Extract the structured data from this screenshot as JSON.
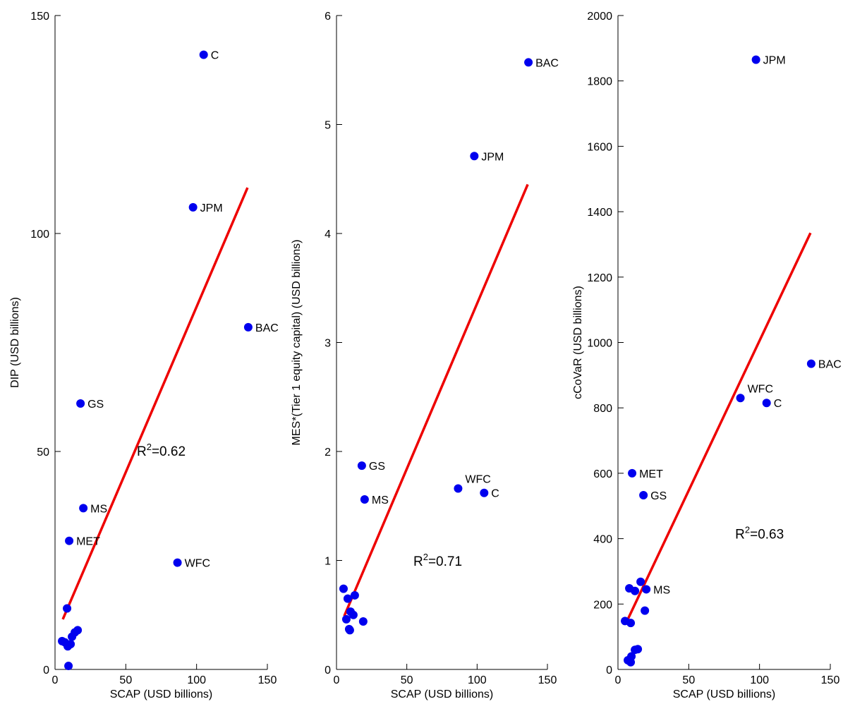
{
  "chart_data": [
    {
      "type": "scatter",
      "xlabel": "SCAP (USD billions)",
      "ylabel": "DIP (USD billions)",
      "xlim": [
        0,
        150
      ],
      "ylim": [
        0,
        150
      ],
      "xticks": [
        "0",
        "50",
        "100",
        "150"
      ],
      "yticks": [
        "0",
        "50",
        "100",
        "150"
      ],
      "grid": false,
      "annotation": {
        "base": "R",
        "sup": "2",
        "rest": "=0.62",
        "x": 75,
        "y": 49
      },
      "fit_line": {
        "x": [
          5.5,
          136
        ],
        "y": [
          11.5,
          110.5
        ]
      },
      "point_color": "#0000ee",
      "line_color": "#ee0000",
      "points": [
        {
          "x": 105,
          "y": 141,
          "label": "C"
        },
        {
          "x": 97.5,
          "y": 106,
          "label": "JPM"
        },
        {
          "x": 136.5,
          "y": 78.5,
          "label": "BAC"
        },
        {
          "x": 18,
          "y": 61,
          "label": "GS"
        },
        {
          "x": 20,
          "y": 37,
          "label": "MS"
        },
        {
          "x": 10,
          "y": 29.5,
          "label": "MET"
        },
        {
          "x": 86.5,
          "y": 24.5,
          "label": "WFC"
        },
        {
          "x": 8.5,
          "y": 14,
          "label": ""
        },
        {
          "x": 16,
          "y": 9,
          "label": ""
        },
        {
          "x": 14,
          "y": 8.5,
          "label": ""
        },
        {
          "x": 12,
          "y": 7.5,
          "label": ""
        },
        {
          "x": 5,
          "y": 6.5,
          "label": ""
        },
        {
          "x": 7,
          "y": 6.2,
          "label": ""
        },
        {
          "x": 11,
          "y": 5.8,
          "label": ""
        },
        {
          "x": 9,
          "y": 5.3,
          "label": ""
        },
        {
          "x": 9.5,
          "y": 0.8,
          "label": ""
        }
      ]
    },
    {
      "type": "scatter",
      "xlabel": "SCAP (USD billions)",
      "ylabel": "MES*(Tier 1 equity capital) (USD billions)",
      "xlim": [
        0,
        150
      ],
      "ylim": [
        0,
        6
      ],
      "xticks": [
        "0",
        "50",
        "100",
        "150"
      ],
      "yticks": [
        "0",
        "1",
        "2",
        "3",
        "4",
        "5",
        "6"
      ],
      "grid": false,
      "annotation": {
        "base": "R",
        "sup": "2",
        "rest": "=0.71",
        "x": 72,
        "y": 0.95
      },
      "fit_line": {
        "x": [
          5.5,
          136
        ],
        "y": [
          0.49,
          4.45
        ]
      },
      "point_color": "#0000ee",
      "line_color": "#ee0000",
      "points": [
        {
          "x": 136.5,
          "y": 5.57,
          "label": "BAC"
        },
        {
          "x": 98,
          "y": 4.71,
          "label": "JPM"
        },
        {
          "x": 18,
          "y": 1.87,
          "label": "GS"
        },
        {
          "x": 86.5,
          "y": 1.66,
          "label": "WFC"
        },
        {
          "x": 105,
          "y": 1.62,
          "label": "C"
        },
        {
          "x": 20,
          "y": 1.56,
          "label": "MS"
        },
        {
          "x": 5,
          "y": 0.74,
          "label": ""
        },
        {
          "x": 13,
          "y": 0.68,
          "label": ""
        },
        {
          "x": 8,
          "y": 0.65,
          "label": ""
        },
        {
          "x": 10,
          "y": 0.53,
          "label": ""
        },
        {
          "x": 12,
          "y": 0.5,
          "label": ""
        },
        {
          "x": 7,
          "y": 0.46,
          "label": ""
        },
        {
          "x": 19,
          "y": 0.44,
          "label": ""
        },
        {
          "x": 9,
          "y": 0.37,
          "label": ""
        },
        {
          "x": 9.5,
          "y": 0.36,
          "label": ""
        }
      ]
    },
    {
      "type": "scatter",
      "xlabel": "SCAP (USD billions)",
      "ylabel": "cCoVaR (USD billions)",
      "xlim": [
        0,
        150
      ],
      "ylim": [
        0,
        2000
      ],
      "xticks": [
        "0",
        "50",
        "100",
        "150"
      ],
      "yticks": [
        "0",
        "200",
        "400",
        "600",
        "800",
        "1000",
        "1200",
        "1400",
        "1600",
        "1800",
        "2000"
      ],
      "grid": false,
      "annotation": {
        "base": "R",
        "sup": "2",
        "rest": "=0.63",
        "x": 100,
        "y": 400
      },
      "fit_line": {
        "x": [
          5.5,
          136
        ],
        "y": [
          140,
          1335
        ]
      },
      "point_color": "#0000ee",
      "line_color": "#ee0000",
      "points": [
        {
          "x": 97.5,
          "y": 1865,
          "label": "JPM"
        },
        {
          "x": 136.5,
          "y": 935,
          "label": "BAC"
        },
        {
          "x": 86.5,
          "y": 830,
          "label": "WFC"
        },
        {
          "x": 105,
          "y": 815,
          "label": "C"
        },
        {
          "x": 10,
          "y": 600,
          "label": "MET"
        },
        {
          "x": 18,
          "y": 533,
          "label": "GS"
        },
        {
          "x": 20,
          "y": 245,
          "label": "MS"
        },
        {
          "x": 16,
          "y": 268,
          "label": ""
        },
        {
          "x": 8,
          "y": 248,
          "label": ""
        },
        {
          "x": 12,
          "y": 240,
          "label": ""
        },
        {
          "x": 19,
          "y": 180,
          "label": ""
        },
        {
          "x": 5,
          "y": 148,
          "label": ""
        },
        {
          "x": 9,
          "y": 142,
          "label": ""
        },
        {
          "x": 14,
          "y": 62,
          "label": ""
        },
        {
          "x": 12,
          "y": 60,
          "label": ""
        },
        {
          "x": 9.5,
          "y": 40,
          "label": ""
        },
        {
          "x": 7,
          "y": 28,
          "label": ""
        },
        {
          "x": 9,
          "y": 22,
          "label": ""
        }
      ]
    }
  ]
}
